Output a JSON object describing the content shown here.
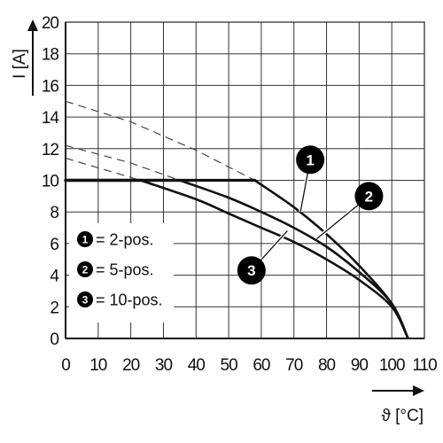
{
  "chart_data": {
    "type": "line",
    "title": "",
    "xlabel": "ϑ [°C]",
    "ylabel": "I [A]",
    "xlim": [
      0,
      110
    ],
    "ylim": [
      0,
      20
    ],
    "xticks": [
      0,
      10,
      20,
      30,
      40,
      50,
      60,
      70,
      80,
      90,
      100,
      110
    ],
    "yticks": [
      0,
      2,
      4,
      6,
      8,
      10,
      12,
      14,
      16,
      18,
      20
    ],
    "grid": true,
    "legend": {
      "placement": "bottom-left",
      "entries": [
        {
          "marker": "1",
          "label": "= 2-pos."
        },
        {
          "marker": "2",
          "label": "= 5-pos."
        },
        {
          "marker": "3",
          "label": "= 10-pos."
        }
      ]
    },
    "series": [
      {
        "marker": "1",
        "solid": [
          [
            0,
            10
          ],
          [
            58,
            10
          ],
          [
            70,
            8.3
          ],
          [
            80,
            6.6
          ],
          [
            90,
            4.6
          ],
          [
            100,
            2.2
          ],
          [
            105,
            0
          ]
        ],
        "dashed": [
          [
            0,
            15
          ],
          [
            20,
            13.7
          ],
          [
            40,
            11.9
          ],
          [
            58,
            10
          ]
        ]
      },
      {
        "marker": "2",
        "solid": [
          [
            0,
            10
          ],
          [
            35,
            10
          ],
          [
            50,
            8.9
          ],
          [
            60,
            8.0
          ],
          [
            70,
            7.0
          ],
          [
            80,
            5.8
          ],
          [
            90,
            4.2
          ],
          [
            100,
            2.2
          ],
          [
            105,
            0
          ]
        ],
        "dashed": [
          [
            0,
            12.2
          ],
          [
            20,
            11.1
          ],
          [
            35,
            10
          ]
        ]
      },
      {
        "marker": "3",
        "solid": [
          [
            0,
            10
          ],
          [
            23,
            10
          ],
          [
            40,
            8.8
          ],
          [
            50,
            7.9
          ],
          [
            60,
            7.0
          ],
          [
            70,
            6.1
          ],
          [
            80,
            5.0
          ],
          [
            90,
            3.7
          ],
          [
            100,
            2.0
          ],
          [
            105,
            0
          ]
        ],
        "dashed": [
          [
            0,
            11.4
          ],
          [
            23,
            10
          ]
        ]
      }
    ],
    "callouts": [
      {
        "marker": "1",
        "x": 75,
        "y": 11.3,
        "target_x": 72,
        "target_y": 8.0
      },
      {
        "marker": "2",
        "x": 93,
        "y": 9.0,
        "target_x": 77,
        "target_y": 6.3
      },
      {
        "marker": "3",
        "x": 57,
        "y": 4.3,
        "target_x": 68,
        "target_y": 6.8
      }
    ],
    "colors": {
      "line": "#111111",
      "grid": "#333333",
      "badge": "#000000"
    }
  }
}
